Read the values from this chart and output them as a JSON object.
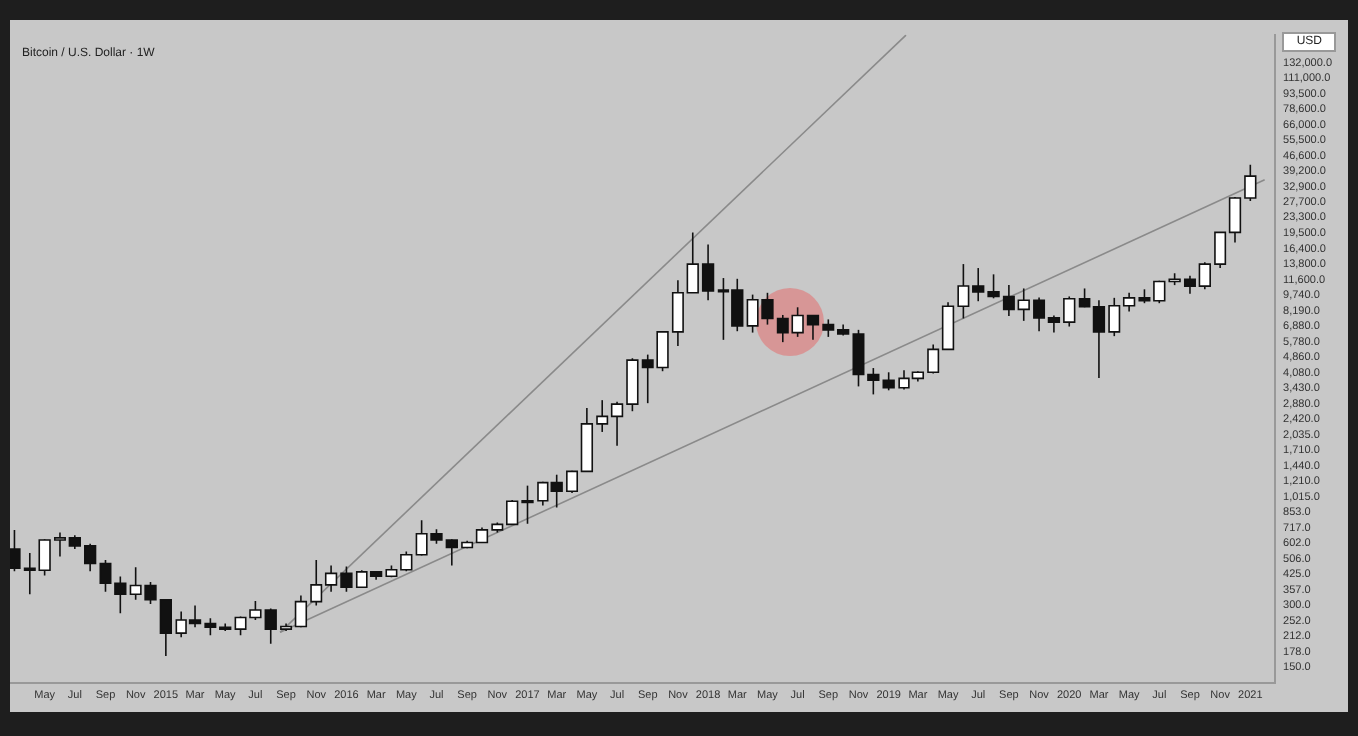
{
  "chart_data": {
    "type": "candlestick",
    "title": "Bitcoin / U.S. Dollar · 1W",
    "annotations": [
      "USD"
    ],
    "log": "y",
    "xlim": [
      "2014-02-20",
      "2021-02-20"
    ],
    "ylim": [
      126,
      181000
    ],
    "x": [
      "2014-03",
      "2014-04",
      "2014-05",
      "2014-06",
      "2014-07",
      "2014-08",
      "2014-09",
      "2014-10",
      "2014-11",
      "2014-12",
      "2015-01",
      "2015-02",
      "2015-03",
      "2015-04",
      "2015-05",
      "2015-06",
      "2015-07",
      "2015-08",
      "2015-09",
      "2015-10",
      "2015-11",
      "2015-12",
      "2016-01",
      "2016-02",
      "2016-03",
      "2016-04",
      "2016-05",
      "2016-06",
      "2016-07",
      "2016-08",
      "2016-09",
      "2016-10",
      "2016-11",
      "2016-12",
      "2017-01",
      "2017-02",
      "2017-03",
      "2017-04",
      "2017-05",
      "2017-06",
      "2017-07",
      "2017-08",
      "2017-09",
      "2017-10",
      "2017-11",
      "2017-12",
      "2018-01",
      "2018-02",
      "2018-03",
      "2018-04",
      "2018-05",
      "2018-06",
      "2018-07",
      "2018-08",
      "2018-09",
      "2018-10",
      "2018-11",
      "2018-12",
      "2019-01",
      "2019-02",
      "2019-03",
      "2019-04",
      "2019-05",
      "2019-06",
      "2019-07",
      "2019-08",
      "2019-09",
      "2019-10",
      "2019-11",
      "2019-12",
      "2020-01",
      "2020-02",
      "2020-03",
      "2020-04",
      "2020-05",
      "2020-06",
      "2020-07",
      "2020-08",
      "2020-09",
      "2020-10",
      "2020-11",
      "2020-12",
      "2021-01"
    ],
    "ohlc": [
      [
        565,
        700,
        440,
        455
      ],
      [
        455,
        540,
        340,
        445
      ],
      [
        445,
        630,
        420,
        625
      ],
      [
        625,
        680,
        520,
        640
      ],
      [
        640,
        660,
        565,
        585
      ],
      [
        585,
        600,
        440,
        480
      ],
      [
        480,
        500,
        350,
        385
      ],
      [
        385,
        415,
        275,
        340
      ],
      [
        340,
        460,
        320,
        375
      ],
      [
        375,
        390,
        305,
        320
      ],
      [
        320,
        320,
        170,
        220
      ],
      [
        220,
        280,
        210,
        255
      ],
      [
        255,
        300,
        235,
        245
      ],
      [
        245,
        260,
        215,
        235
      ],
      [
        235,
        245,
        225,
        230
      ],
      [
        230,
        265,
        215,
        262
      ],
      [
        262,
        315,
        255,
        285
      ],
      [
        285,
        290,
        195,
        230
      ],
      [
        230,
        245,
        225,
        237
      ],
      [
        237,
        335,
        235,
        313
      ],
      [
        313,
        500,
        300,
        378
      ],
      [
        378,
        470,
        350,
        430
      ],
      [
        430,
        465,
        350,
        368
      ],
      [
        368,
        445,
        365,
        437
      ],
      [
        437,
        440,
        400,
        416
      ],
      [
        416,
        470,
        412,
        448
      ],
      [
        448,
        550,
        440,
        530
      ],
      [
        530,
        780,
        525,
        670
      ],
      [
        670,
        705,
        600,
        625
      ],
      [
        625,
        630,
        470,
        575
      ],
      [
        575,
        620,
        570,
        608
      ],
      [
        608,
        720,
        605,
        700
      ],
      [
        700,
        760,
        680,
        745
      ],
      [
        745,
        980,
        740,
        965
      ],
      [
        965,
        1150,
        750,
        970
      ],
      [
        970,
        1200,
        920,
        1190
      ],
      [
        1190,
        1300,
        900,
        1080
      ],
      [
        1080,
        1360,
        1060,
        1350
      ],
      [
        1350,
        2750,
        1340,
        2300
      ],
      [
        2300,
        3000,
        2100,
        2500
      ],
      [
        2500,
        2950,
        1800,
        2870
      ],
      [
        2870,
        4800,
        2650,
        4700
      ],
      [
        4700,
        5000,
        2900,
        4330
      ],
      [
        4330,
        6450,
        4150,
        6450
      ],
      [
        6450,
        11500,
        5500,
        10000
      ],
      [
        10000,
        19666,
        10000,
        13800
      ],
      [
        13800,
        17200,
        9200,
        10200
      ],
      [
        10200,
        11800,
        5900,
        10300
      ],
      [
        10300,
        11700,
        6500,
        6900
      ],
      [
        6900,
        9800,
        6400,
        9250
      ],
      [
        9250,
        10000,
        7000,
        7500
      ],
      [
        7500,
        7800,
        5750,
        6400
      ],
      [
        6400,
        8500,
        6100,
        7750
      ],
      [
        7750,
        7800,
        5900,
        7000
      ],
      [
        7000,
        7420,
        6100,
        6600
      ],
      [
        6600,
        7000,
        6200,
        6300
      ],
      [
        6300,
        6600,
        3500,
        4000
      ],
      [
        4000,
        4300,
        3200,
        3750
      ],
      [
        3750,
        4100,
        3350,
        3450
      ],
      [
        3450,
        4200,
        3380,
        3830
      ],
      [
        3830,
        4150,
        3700,
        4100
      ],
      [
        4100,
        5600,
        4050,
        5300
      ],
      [
        5300,
        9000,
        5300,
        8600
      ],
      [
        8600,
        13800,
        7500,
        10800
      ],
      [
        10800,
        13200,
        9100,
        10100
      ],
      [
        10100,
        12300,
        9400,
        9600
      ],
      [
        9600,
        10900,
        7700,
        8300
      ],
      [
        8300,
        10500,
        7300,
        9200
      ],
      [
        9200,
        9500,
        6500,
        7550
      ],
      [
        7550,
        7750,
        6400,
        7200
      ],
      [
        7200,
        9600,
        6850,
        9350
      ],
      [
        9350,
        10500,
        8500,
        8550
      ],
      [
        8550,
        9200,
        3850,
        6450
      ],
      [
        6450,
        9450,
        6150,
        8650
      ],
      [
        8650,
        10000,
        8100,
        9450
      ],
      [
        9450,
        10400,
        8900,
        9150
      ],
      [
        9150,
        11450,
        8900,
        11350
      ],
      [
        11350,
        12450,
        10900,
        11650
      ],
      [
        11650,
        12100,
        9900,
        10780
      ],
      [
        10780,
        14100,
        10400,
        13800
      ],
      [
        13800,
        19800,
        13200,
        19700
      ],
      [
        19700,
        29300,
        17600,
        28950
      ],
      [
        28950,
        42000,
        28000,
        37000
      ]
    ],
    "series": [
      {
        "type": "line",
        "color": "#8a8a8a",
        "x": [
          "2015-08-20",
          "2019-02-05"
        ],
        "values": [
          222,
          180000
        ]
      },
      {
        "type": "line",
        "color": "#8a8a8a",
        "x": [
          "2015-08-20",
          "2021-01-30"
        ],
        "values": [
          222,
          35500
        ]
      }
    ],
    "xticks": [
      {
        "value": "2014-05",
        "label": "May"
      },
      {
        "value": "2014-07",
        "label": "Jul"
      },
      {
        "value": "2014-09",
        "label": "Sep"
      },
      {
        "value": "2014-11",
        "label": "Nov"
      },
      {
        "value": "2015-01",
        "label": "2015"
      },
      {
        "value": "2015-03",
        "label": "Mar"
      },
      {
        "value": "2015-05",
        "label": "May"
      },
      {
        "value": "2015-07",
        "label": "Jul"
      },
      {
        "value": "2015-09",
        "label": "Sep"
      },
      {
        "value": "2015-11",
        "label": "Nov"
      },
      {
        "value": "2016-01",
        "label": "2016"
      },
      {
        "value": "2016-03",
        "label": "Mar"
      },
      {
        "value": "2016-05",
        "label": "May"
      },
      {
        "value": "2016-07",
        "label": "Jul"
      },
      {
        "value": "2016-09",
        "label": "Sep"
      },
      {
        "value": "2016-11",
        "label": "Nov"
      },
      {
        "value": "2017-01",
        "label": "2017"
      },
      {
        "value": "2017-03",
        "label": "Mar"
      },
      {
        "value": "2017-05",
        "label": "May"
      },
      {
        "value": "2017-07",
        "label": "Jul"
      },
      {
        "value": "2017-09",
        "label": "Sep"
      },
      {
        "value": "2017-11",
        "label": "Nov"
      },
      {
        "value": "2018-01",
        "label": "2018"
      },
      {
        "value": "2018-03",
        "label": "Mar"
      },
      {
        "value": "2018-05",
        "label": "May"
      },
      {
        "value": "2018-07",
        "label": "Jul"
      },
      {
        "value": "2018-09",
        "label": "Sep"
      },
      {
        "value": "2018-11",
        "label": "Nov"
      },
      {
        "value": "2019-01",
        "label": "2019"
      },
      {
        "value": "2019-03",
        "label": "Mar"
      },
      {
        "value": "2019-05",
        "label": "May"
      },
      {
        "value": "2019-07",
        "label": "Jul"
      },
      {
        "value": "2019-09",
        "label": "Sep"
      },
      {
        "value": "2019-11",
        "label": "Nov"
      },
      {
        "value": "2020-01",
        "label": "2020"
      },
      {
        "value": "2020-03",
        "label": "Mar"
      },
      {
        "value": "2020-05",
        "label": "May"
      },
      {
        "value": "2020-07",
        "label": "Jul"
      },
      {
        "value": "2020-09",
        "label": "Sep"
      },
      {
        "value": "2020-11",
        "label": "Nov"
      },
      {
        "value": "2021-01",
        "label": "2021"
      }
    ],
    "yticks": [
      {
        "value": 150,
        "label": "150.0"
      },
      {
        "value": 178,
        "label": "178.0"
      },
      {
        "value": 212,
        "label": "212.0"
      },
      {
        "value": 252,
        "label": "252.0"
      },
      {
        "value": 300,
        "label": "300.0"
      },
      {
        "value": 357,
        "label": "357.0"
      },
      {
        "value": 425,
        "label": "425.0"
      },
      {
        "value": 506,
        "label": "506.0"
      },
      {
        "value": 602,
        "label": "602.0"
      },
      {
        "value": 717,
        "label": "717.0"
      },
      {
        "value": 853,
        "label": "853.0"
      },
      {
        "value": 1015,
        "label": "1,015.0"
      },
      {
        "value": 1210,
        "label": "1,210.0"
      },
      {
        "value": 1440,
        "label": "1,440.0"
      },
      {
        "value": 1710,
        "label": "1,710.0"
      },
      {
        "value": 2035,
        "label": "2,035.0"
      },
      {
        "value": 2420,
        "label": "2,420.0"
      },
      {
        "value": 2880,
        "label": "2,880.0"
      },
      {
        "value": 3430,
        "label": "3,430.0"
      },
      {
        "value": 4080,
        "label": "4,080.0"
      },
      {
        "value": 4860,
        "label": "4,860.0"
      },
      {
        "value": 5780,
        "label": "5,780.0"
      },
      {
        "value": 6880,
        "label": "6,880.0"
      },
      {
        "value": 8190,
        "label": "8,190.0"
      },
      {
        "value": 9740,
        "label": "9,740.0"
      },
      {
        "value": 11600,
        "label": "11,600.0"
      },
      {
        "value": 13800,
        "label": "13,800.0"
      },
      {
        "value": 16400,
        "label": "16,400.0"
      },
      {
        "value": 19500,
        "label": "19,500.0"
      },
      {
        "value": 23300,
        "label": "23,300.0"
      },
      {
        "value": 27700,
        "label": "27,700.0"
      },
      {
        "value": 32900,
        "label": "32,900.0"
      },
      {
        "value": 39200,
        "label": "39,200.0"
      },
      {
        "value": 46600,
        "label": "46,600.0"
      },
      {
        "value": 55500,
        "label": "55,500.0"
      },
      {
        "value": 66000,
        "label": "66,000.0"
      },
      {
        "value": 78600,
        "label": "78,600.0"
      },
      {
        "value": 93500,
        "label": "93,500.0"
      },
      {
        "value": 111000,
        "label": "111,000.0"
      },
      {
        "value": 132000,
        "label": "132,000.0"
      }
    ]
  }
}
